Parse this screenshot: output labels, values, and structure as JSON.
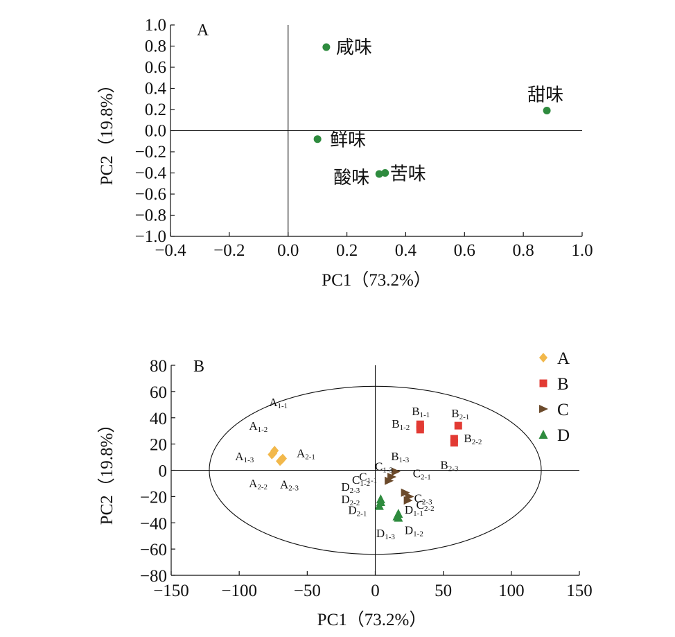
{
  "chart_data": [
    {
      "type": "scatter",
      "panel_label": "A",
      "xlabel": "PC1（73.2%）",
      "ylabel": "PC2（19.8%）",
      "xlim": [
        -0.4,
        1.0
      ],
      "ylim": [
        -1.0,
        1.0
      ],
      "xticks": [
        "−0.4",
        "−0.2",
        "0.0",
        "0.2",
        "0.4",
        "0.6",
        "0.8",
        "1.0"
      ],
      "yticks": [
        "1.0",
        "0.8",
        "0.6",
        "0.4",
        "0.2",
        "0.0",
        "−0.2",
        "−0.4",
        "−0.6",
        "−0.8",
        "−1.0"
      ],
      "point_color": "#2e8b3e",
      "points": [
        {
          "label": "咸味",
          "x": 0.13,
          "y": 0.79
        },
        {
          "label": "甜味",
          "x": 0.88,
          "y": 0.19
        },
        {
          "label": "鲜味",
          "x": 0.1,
          "y": -0.08
        },
        {
          "label": "酸味",
          "x": 0.31,
          "y": -0.41
        },
        {
          "label": "苦味",
          "x": 0.33,
          "y": -0.4
        }
      ]
    },
    {
      "type": "scatter",
      "panel_label": "B",
      "xlabel": "PC1（73.2%）",
      "ylabel": "PC2（19.8%）",
      "xlim": [
        -150,
        150
      ],
      "ylim": [
        -80,
        80
      ],
      "xticks": [
        "−150",
        "−100",
        "−50",
        "0",
        "50",
        "100",
        "150"
      ],
      "yticks": [
        "80",
        "60",
        "40",
        "20",
        "0",
        "−20",
        "−40",
        "−60",
        "−80"
      ],
      "ellipse": {
        "rx": 122,
        "ry": 64
      },
      "legend_position": "top-right",
      "series": [
        {
          "name": "A",
          "color": "#f2b84b",
          "marker": "diamond",
          "points": [
            {
              "main": "A",
              "sub": "1-1",
              "x": -74,
              "y": 15
            },
            {
              "main": "A",
              "sub": "1-2",
              "x": -76,
              "y": 12
            },
            {
              "main": "A",
              "sub": "1-3",
              "x": -75,
              "y": 13
            },
            {
              "main": "A",
              "sub": "2-1",
              "x": -68,
              "y": 9
            },
            {
              "main": "A",
              "sub": "2-2",
              "x": -70,
              "y": 7
            },
            {
              "main": "A",
              "sub": "2-3",
              "x": -69,
              "y": 8
            }
          ]
        },
        {
          "name": "B",
          "color": "#e23a33",
          "marker": "square",
          "points": [
            {
              "main": "B",
              "sub": "1-1",
              "x": 33,
              "y": 35
            },
            {
              "main": "B",
              "sub": "1-2",
              "x": 33,
              "y": 33
            },
            {
              "main": "B",
              "sub": "1-3",
              "x": 33,
              "y": 31
            },
            {
              "main": "B",
              "sub": "2-1",
              "x": 61,
              "y": 34
            },
            {
              "main": "B",
              "sub": "2-2",
              "x": 58,
              "y": 24
            },
            {
              "main": "B",
              "sub": "2-3",
              "x": 58,
              "y": 21
            }
          ]
        },
        {
          "name": "C",
          "color": "#6b4a2b",
          "marker": "triangle-right",
          "points": [
            {
              "main": "C",
              "sub": "1-1",
              "x": 10,
              "y": -8
            },
            {
              "main": "C",
              "sub": "1-2",
              "x": 12,
              "y": -5
            },
            {
              "main": "C",
              "sub": "1-3",
              "x": 15,
              "y": -1
            },
            {
              "main": "C",
              "sub": "2-1",
              "x": 22,
              "y": -17
            },
            {
              "main": "C",
              "sub": "2-2",
              "x": 24,
              "y": -23
            },
            {
              "main": "C",
              "sub": "2-3",
              "x": 25,
              "y": -20
            }
          ]
        },
        {
          "name": "D",
          "color": "#2e8b3e",
          "marker": "triangle-up",
          "points": [
            {
              "main": "D",
              "sub": "1-1",
              "x": 17,
              "y": -33
            },
            {
              "main": "D",
              "sub": "1-2",
              "x": 17,
              "y": -36
            },
            {
              "main": "D",
              "sub": "1-3",
              "x": 16,
              "y": -35
            },
            {
              "main": "D",
              "sub": "2-1",
              "x": 3,
              "y": -27
            },
            {
              "main": "D",
              "sub": "2-2",
              "x": 4,
              "y": -24
            },
            {
              "main": "D",
              "sub": "2-3",
              "x": 4,
              "y": -22
            }
          ]
        }
      ]
    }
  ]
}
